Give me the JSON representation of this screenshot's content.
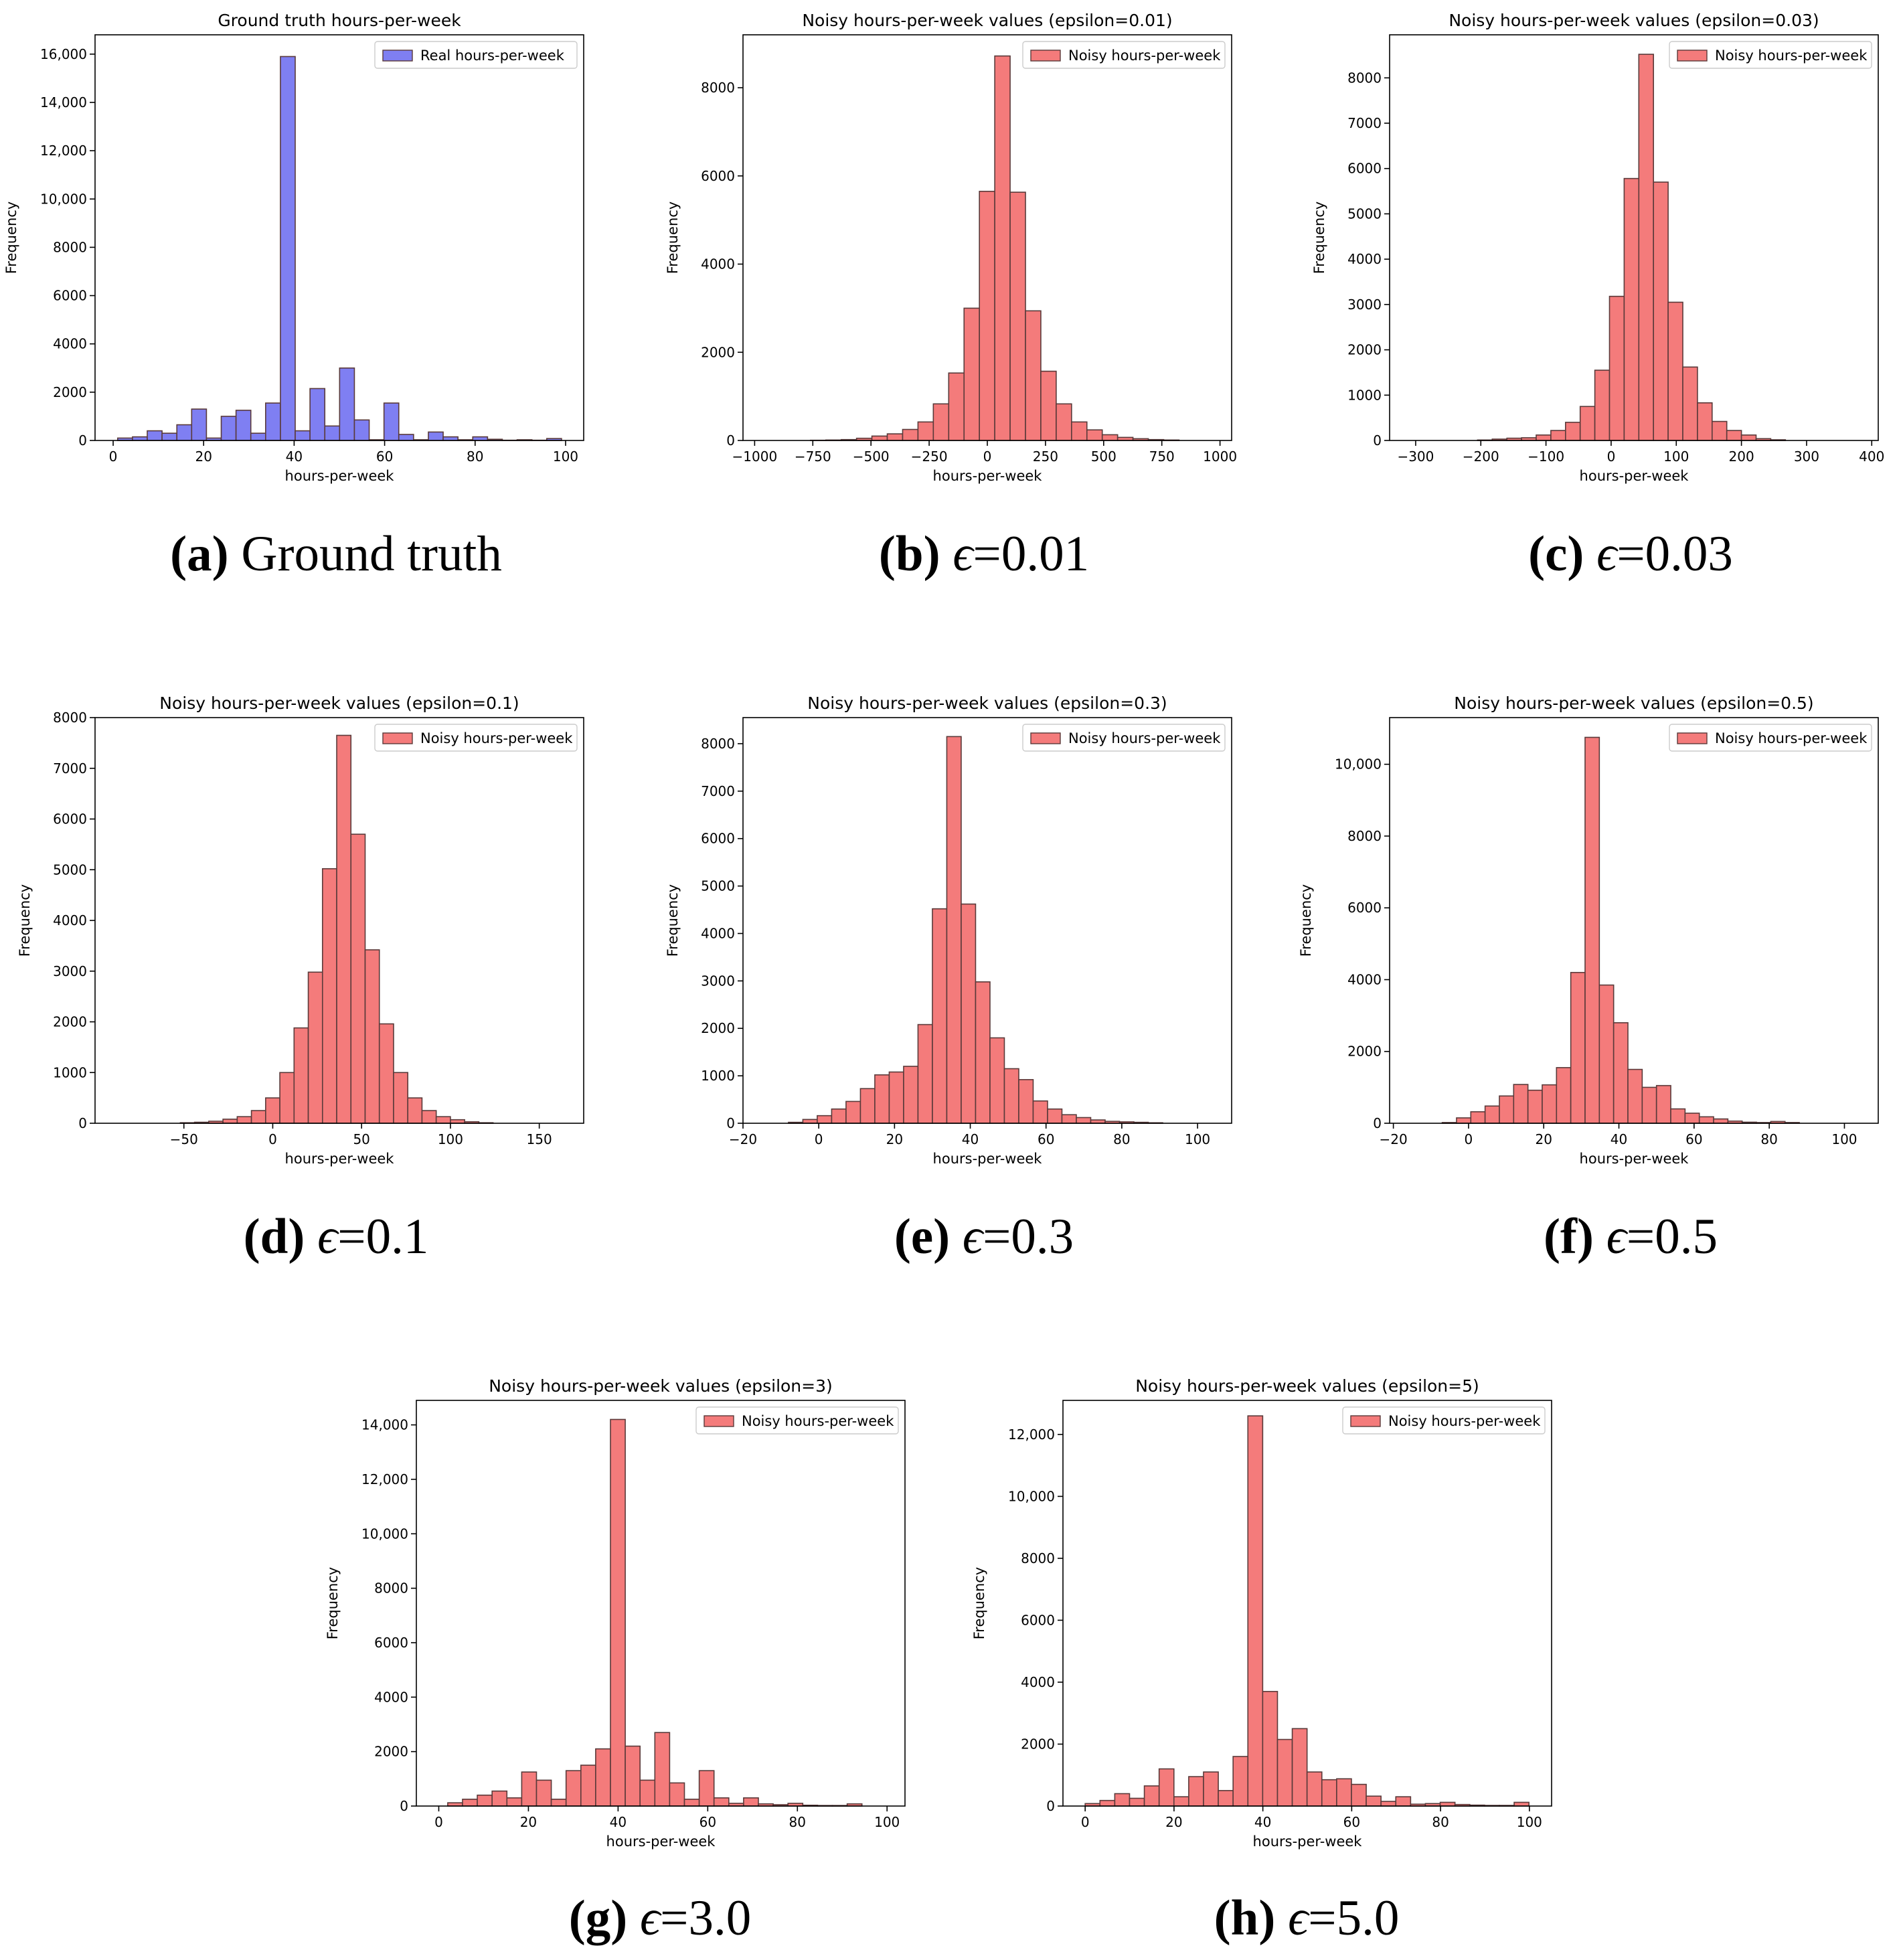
{
  "chart_data": [
    {
      "id": "a",
      "type": "bar",
      "title": "Ground truth hours-per-week",
      "xlabel": "hours-per-week",
      "ylabel": "Frequency",
      "legend": "Real hours-per-week",
      "legend_loc": "top-right",
      "color": "#7f7ff2",
      "caption_letter": "(a)",
      "caption_text": "Ground truth",
      "caption_eps": "",
      "xlim": [
        -4,
        104
      ],
      "ylim": [
        0,
        16800
      ],
      "xticks": [
        0,
        20,
        40,
        60,
        80,
        100
      ],
      "xtick_labels": [
        "0",
        "20",
        "40",
        "60",
        "80",
        "100"
      ],
      "yticks": [
        0,
        2000,
        4000,
        6000,
        8000,
        10000,
        12000,
        14000,
        16000
      ],
      "ytick_labels": [
        "0",
        "2000",
        "4000",
        "6000",
        "8000",
        "10,000",
        "12,000",
        "14,000",
        "16,000"
      ],
      "bin_start": 1,
      "bin_width": 3.27,
      "values": [
        100,
        150,
        400,
        300,
        650,
        1300,
        100,
        1000,
        1250,
        300,
        1550,
        15900,
        400,
        2150,
        600,
        3000,
        850,
        30,
        1550,
        250,
        30,
        350,
        150,
        30,
        150,
        50,
        10,
        30,
        10,
        80
      ]
    },
    {
      "id": "b",
      "type": "bar",
      "title": "Noisy hours-per-week values (epsilon=0.01)",
      "xlabel": "hours-per-week",
      "ylabel": "Frequency",
      "legend": "Noisy hours-per-week",
      "legend_loc": "top-right",
      "color": "#f47b7b",
      "caption_letter": "(b)",
      "caption_text": "",
      "caption_eps": "0.01",
      "xlim": [
        -1050,
        1050
      ],
      "ylim": [
        0,
        9200
      ],
      "xticks": [
        -1000,
        -750,
        -500,
        -250,
        0,
        250,
        500,
        750,
        1000
      ],
      "xtick_labels": [
        "−1000",
        "−750",
        "−500",
        "−250",
        "0",
        "250",
        "500",
        "750",
        "1000"
      ],
      "yticks": [
        0,
        2000,
        4000,
        6000,
        8000
      ],
      "ytick_labels": [
        "0",
        "2000",
        "4000",
        "6000",
        "8000"
      ],
      "bin_start": -760,
      "bin_width": 66,
      "values": [
        5,
        10,
        20,
        50,
        100,
        150,
        250,
        420,
        830,
        1530,
        3000,
        5650,
        8720,
        5630,
        2940,
        1570,
        830,
        420,
        240,
        130,
        70,
        40,
        20,
        10
      ]
    },
    {
      "id": "c",
      "type": "bar",
      "title": "Noisy hours-per-week values (epsilon=0.03)",
      "xlabel": "hours-per-week",
      "ylabel": "Frequency",
      "legend": "Noisy hours-per-week",
      "legend_loc": "top-right",
      "color": "#f47b7b",
      "caption_letter": "(c)",
      "caption_text": "",
      "caption_eps": "0.03",
      "xlim": [
        -340,
        410
      ],
      "ylim": [
        0,
        8950
      ],
      "xticks": [
        -300,
        -200,
        -100,
        0,
        100,
        200,
        300,
        400
      ],
      "xtick_labels": [
        "−300",
        "−200",
        "−100",
        "0",
        "100",
        "200",
        "300",
        "400"
      ],
      "yticks": [
        0,
        1000,
        2000,
        3000,
        4000,
        5000,
        6000,
        7000,
        8000
      ],
      "ytick_labels": [
        "0",
        "1000",
        "2000",
        "3000",
        "4000",
        "5000",
        "6000",
        "7000",
        "8000"
      ],
      "bin_start": -205,
      "bin_width": 22.5,
      "values": [
        10,
        30,
        50,
        60,
        120,
        220,
        400,
        750,
        1550,
        3180,
        5780,
        8520,
        5700,
        3050,
        1620,
        830,
        420,
        220,
        120,
        40,
        15
      ]
    },
    {
      "id": "d",
      "type": "bar",
      "title": "Noisy hours-per-week values (epsilon=0.1)",
      "xlabel": "hours-per-week",
      "ylabel": "Frequency",
      "legend": "Noisy hours-per-week",
      "legend_loc": "top-right",
      "color": "#f47b7b",
      "caption_letter": "(d)",
      "caption_text": "",
      "caption_eps": "0.1",
      "xlim": [
        -100,
        175
      ],
      "ylim": [
        0,
        8000
      ],
      "xticks": [
        -50,
        0,
        50,
        100,
        150
      ],
      "xtick_labels": [
        "−50",
        "0",
        "50",
        "100",
        "150"
      ],
      "yticks": [
        0,
        1000,
        2000,
        3000,
        4000,
        5000,
        6000,
        7000,
        8000
      ],
      "ytick_labels": [
        "0",
        "1000",
        "2000",
        "3000",
        "4000",
        "5000",
        "6000",
        "7000",
        "8000"
      ],
      "bin_start": -52,
      "bin_width": 8,
      "values": [
        10,
        20,
        40,
        80,
        130,
        250,
        500,
        1000,
        1880,
        2980,
        5020,
        7650,
        5700,
        3420,
        1960,
        1000,
        500,
        250,
        130,
        70,
        30,
        10
      ]
    },
    {
      "id": "e",
      "type": "bar",
      "title": "Noisy hours-per-week values (epsilon=0.3)",
      "xlabel": "hours-per-week",
      "ylabel": "Frequency",
      "legend": "Noisy hours-per-week",
      "legend_loc": "top-right",
      "color": "#f47b7b",
      "caption_letter": "(e)",
      "caption_text": "",
      "caption_eps": "0.3",
      "xlim": [
        -20,
        109
      ],
      "ylim": [
        0,
        8550
      ],
      "xticks": [
        -20,
        0,
        20,
        40,
        60,
        80,
        100
      ],
      "xtick_labels": [
        "−20",
        "0",
        "20",
        "40",
        "60",
        "80",
        "100"
      ],
      "yticks": [
        0,
        1000,
        2000,
        3000,
        4000,
        5000,
        6000,
        7000,
        8000
      ],
      "ytick_labels": [
        "0",
        "1000",
        "2000",
        "3000",
        "4000",
        "5000",
        "6000",
        "7000",
        "8000"
      ],
      "bin_start": -8,
      "bin_width": 3.8,
      "values": [
        20,
        80,
        160,
        300,
        460,
        730,
        1020,
        1080,
        1200,
        2080,
        4520,
        8150,
        4620,
        2980,
        1800,
        1150,
        920,
        470,
        300,
        180,
        120,
        70,
        40,
        30,
        20,
        10
      ]
    },
    {
      "id": "f",
      "type": "bar",
      "title": "Noisy hours-per-week values (epsilon=0.5)",
      "xlabel": "hours-per-week",
      "ylabel": "Frequency",
      "legend": "Noisy hours-per-week",
      "legend_loc": "top-right",
      "color": "#f47b7b",
      "caption_letter": "(f)",
      "caption_text": "",
      "caption_eps": "0.5",
      "xlim": [
        -21,
        109
      ],
      "ylim": [
        0,
        11300
      ],
      "xticks": [
        -20,
        0,
        20,
        40,
        60,
        80,
        100
      ],
      "xtick_labels": [
        "−20",
        "0",
        "20",
        "40",
        "60",
        "80",
        "100"
      ],
      "yticks": [
        0,
        2000,
        4000,
        6000,
        8000,
        10000
      ],
      "ytick_labels": [
        "0",
        "2000",
        "4000",
        "6000",
        "8000",
        "10,000"
      ],
      "bin_start": -7,
      "bin_width": 3.8,
      "values": [
        20,
        150,
        320,
        480,
        760,
        1080,
        920,
        1070,
        1550,
        4200,
        10750,
        3850,
        2800,
        1500,
        1000,
        1050,
        400,
        280,
        180,
        120,
        60,
        30,
        20,
        50,
        20
      ]
    },
    {
      "id": "g",
      "type": "bar",
      "title": "Noisy hours-per-week values (epsilon=3)",
      "xlabel": "hours-per-week",
      "ylabel": "Frequency",
      "legend": "Noisy hours-per-week",
      "legend_loc": "top-right",
      "color": "#f47b7b",
      "caption_letter": "(g)",
      "caption_text": "",
      "caption_eps": "3.0",
      "xlim": [
        -5,
        104
      ],
      "ylim": [
        0,
        14900
      ],
      "xticks": [
        0,
        20,
        40,
        60,
        80,
        100
      ],
      "xtick_labels": [
        "0",
        "20",
        "40",
        "60",
        "80",
        "100"
      ],
      "yticks": [
        0,
        2000,
        4000,
        6000,
        8000,
        10000,
        12000,
        14000
      ],
      "ytick_labels": [
        "0",
        "2000",
        "4000",
        "6000",
        "8000",
        "10,000",
        "12,000",
        "14,000"
      ],
      "bin_start": 2,
      "bin_width": 3.3,
      "values": [
        120,
        250,
        400,
        550,
        300,
        1250,
        950,
        250,
        1300,
        1500,
        2100,
        14200,
        2200,
        950,
        2700,
        850,
        250,
        1300,
        300,
        100,
        300,
        80,
        50,
        100,
        30,
        20,
        20,
        80
      ]
    },
    {
      "id": "h",
      "type": "bar",
      "title": "Noisy hours-per-week values (epsilon=5)",
      "xlabel": "hours-per-week",
      "ylabel": "Frequency",
      "legend": "Noisy hours-per-week",
      "legend_loc": "top-right",
      "color": "#f47b7b",
      "caption_letter": "(h)",
      "caption_text": "",
      "caption_eps": "5.0",
      "xlim": [
        -5,
        105
      ],
      "ylim": [
        0,
        13100
      ],
      "xticks": [
        0,
        20,
        40,
        60,
        80,
        100
      ],
      "xtick_labels": [
        "0",
        "20",
        "40",
        "60",
        "80",
        "100"
      ],
      "yticks": [
        0,
        2000,
        4000,
        6000,
        8000,
        10000,
        12000
      ],
      "ytick_labels": [
        "0",
        "2000",
        "4000",
        "6000",
        "8000",
        "10,000",
        "12,000"
      ],
      "bin_start": 0,
      "bin_width": 3.33,
      "values": [
        80,
        180,
        400,
        250,
        650,
        1200,
        300,
        950,
        1100,
        500,
        1600,
        12600,
        3700,
        2150,
        2500,
        1100,
        850,
        880,
        700,
        320,
        150,
        300,
        60,
        80,
        120,
        50,
        30,
        20,
        20,
        120
      ]
    }
  ]
}
